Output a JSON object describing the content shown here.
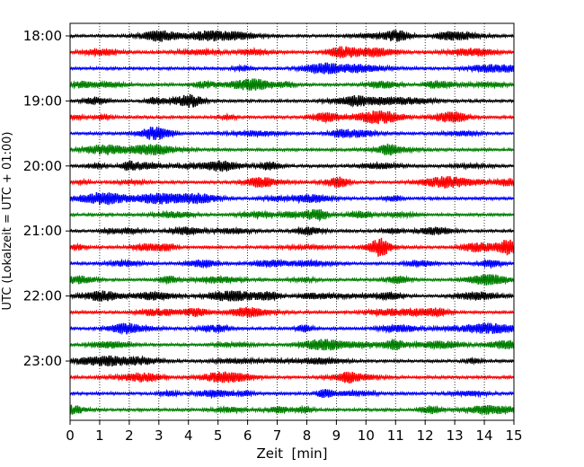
{
  "chart_data": {
    "type": "line",
    "title": "",
    "xlabel": "Zeit  [min]",
    "ylabel": "UTC (Lokalzeit = UTC + 01:00)",
    "xlim": [
      0,
      15
    ],
    "x_ticks": [
      0,
      1,
      2,
      3,
      4,
      5,
      6,
      7,
      8,
      9,
      10,
      11,
      12,
      13,
      14,
      15
    ],
    "y_tick_labels": [
      "18:00",
      "19:00",
      "20:00",
      "21:00",
      "22:00",
      "23:00"
    ],
    "trace_interval_min": 15,
    "start_time": "18:00",
    "trace_count": 24,
    "trace_colors": [
      "#000000",
      "#ff0000",
      "#0000ff",
      "#008000"
    ],
    "grid": "vertical dotted lines at each minute"
  }
}
